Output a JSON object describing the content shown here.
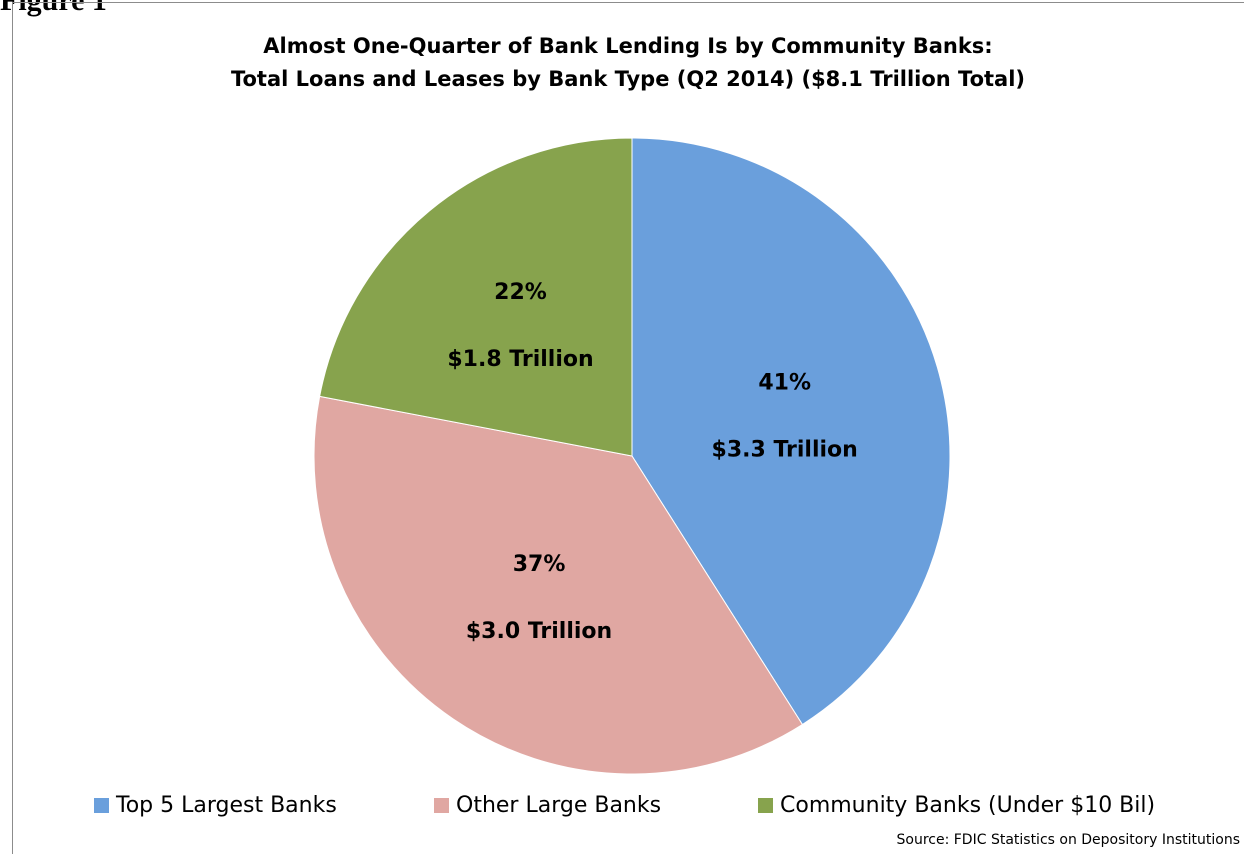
{
  "figure_label": "Figure 1",
  "source": "Source: FDIC Statistics on Depository Institutions",
  "chart_data": {
    "type": "pie",
    "title": "Almost One-Quarter of Bank Lending Is by Community Banks:",
    "subtitle": "Total Loans and Leases by Bank Type (Q2 2014) ($8.1 Trillion Total)",
    "total_trillions": 8.1,
    "start_angle": "12 o'clock",
    "direction": "clockwise",
    "legend_position": "bottom",
    "slices": [
      {
        "name": "Top 5 Largest Banks",
        "value": 3.3,
        "percent": 41,
        "percent_label": "41%",
        "value_label": "$3.3 Trillion",
        "color": "#6a9fdc"
      },
      {
        "name": "Other Large Banks",
        "value": 3.0,
        "percent": 37,
        "percent_label": "37%",
        "value_label": "$3.0 Trillion",
        "color": "#e0a7a2"
      },
      {
        "name": "Community Banks (Under $10 Bil)",
        "value": 1.8,
        "percent": 22,
        "percent_label": "22%",
        "value_label": "$1.8 Trillion",
        "color": "#87a34d"
      }
    ]
  }
}
